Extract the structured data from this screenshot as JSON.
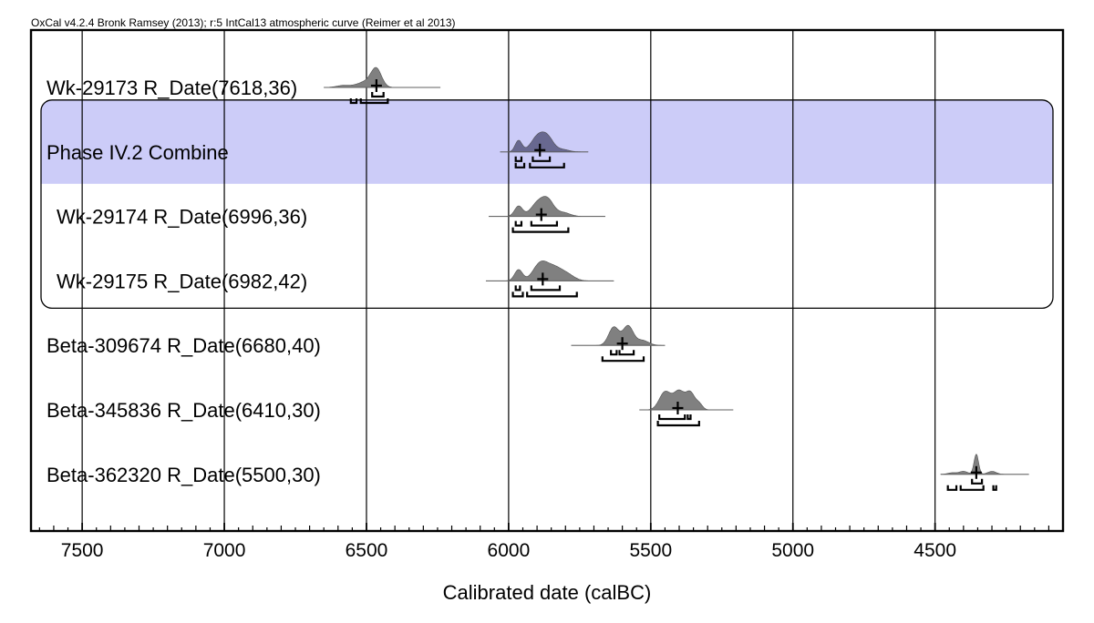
{
  "header": "OxCal v4.2.4 Bronk Ramsey (2013); r:5 IntCal13 atmospheric curve (Reimer et al 2013)",
  "chart_data": {
    "type": "ridgeline",
    "xlabel": "Calibrated date (calBC)",
    "xlim": [
      7680,
      4050
    ],
    "x_reversed": true,
    "xticks": [
      7500,
      7000,
      6500,
      6000,
      5500,
      5000,
      4500
    ],
    "grid": true,
    "groups": [
      {
        "label": "Phase IV.2 Combine",
        "rows": [
          1,
          3
        ],
        "highlight_row": 1,
        "highlight_color": "#ccccf8"
      }
    ],
    "rows": [
      {
        "label": "Wk-29173 R_Date(7618,36)",
        "indent": false,
        "median": 6465,
        "range": [
          6650,
          6240
        ],
        "peaks": [
          [
            6465,
            18,
            1.0
          ],
          [
            6500,
            30,
            0.35
          ],
          [
            6580,
            25,
            0.12
          ]
        ],
        "sigma1": [
          [
            6480,
            6440
          ]
        ],
        "sigma2": [
          [
            6555,
            6535
          ],
          [
            6520,
            6425
          ]
        ]
      },
      {
        "label": "Phase IV.2 Combine",
        "indent": false,
        "combined": true,
        "median": 5890,
        "range": [
          6030,
          5720
        ],
        "peaks": [
          [
            5965,
            12,
            0.7
          ],
          [
            5895,
            25,
            1.0
          ],
          [
            5860,
            20,
            0.65
          ],
          [
            5810,
            22,
            0.15
          ]
        ],
        "sigma1": [
          [
            5975,
            5955
          ],
          [
            5915,
            5855
          ]
        ],
        "sigma2": [
          [
            5975,
            5945
          ],
          [
            5925,
            5805
          ]
        ]
      },
      {
        "label": "Wk-29174 R_Date(6996,36)",
        "indent": true,
        "median": 5885,
        "range": [
          6070,
          5660
        ],
        "peaks": [
          [
            5965,
            14,
            0.65
          ],
          [
            5895,
            25,
            0.9
          ],
          [
            5860,
            20,
            0.8
          ],
          [
            5810,
            25,
            0.25
          ]
        ],
        "sigma1": [
          [
            5975,
            5955
          ],
          [
            5920,
            5830
          ]
        ],
        "sigma2": [
          [
            5985,
            5790
          ]
        ]
      },
      {
        "label": "Wk-29175 R_Date(6982,42)",
        "indent": true,
        "median": 5880,
        "range": [
          6080,
          5630
        ],
        "peaks": [
          [
            5965,
            14,
            0.6
          ],
          [
            5890,
            25,
            0.85
          ],
          [
            5840,
            30,
            0.7
          ],
          [
            5790,
            25,
            0.25
          ]
        ],
        "sigma1": [
          [
            5975,
            5960
          ],
          [
            5920,
            5820
          ]
        ],
        "sigma2": [
          [
            5985,
            5950
          ],
          [
            5935,
            5760
          ]
        ]
      },
      {
        "label": "Beta-309674 R_Date(6680,40)",
        "indent": false,
        "median": 5600,
        "range": [
          5780,
          5450
        ],
        "peaks": [
          [
            5630,
            18,
            0.9
          ],
          [
            5580,
            18,
            0.95
          ],
          [
            5530,
            22,
            0.25
          ]
        ],
        "sigma1": [
          [
            5640,
            5620
          ],
          [
            5610,
            5560
          ]
        ],
        "sigma2": [
          [
            5670,
            5525
          ]
        ]
      },
      {
        "label": "Beta-345836 R_Date(6410,30)",
        "indent": false,
        "median": 5405,
        "range": [
          5540,
          5210
        ],
        "peaks": [
          [
            5450,
            20,
            0.9
          ],
          [
            5400,
            20,
            0.95
          ],
          [
            5360,
            15,
            0.8
          ],
          [
            5330,
            12,
            0.3
          ]
        ],
        "sigma1": [
          [
            5470,
            5380
          ],
          [
            5370,
            5360
          ]
        ],
        "sigma2": [
          [
            5475,
            5330
          ]
        ]
      },
      {
        "label": "Beta-362320 R_Date(5500,30)",
        "indent": false,
        "median": 4355,
        "range": [
          4480,
          4170
        ],
        "peaks": [
          [
            4355,
            8,
            1.0
          ],
          [
            4400,
            15,
            0.15
          ],
          [
            4300,
            15,
            0.15
          ],
          [
            4440,
            15,
            0.08
          ]
        ],
        "sigma1": [
          [
            4370,
            4335
          ]
        ],
        "sigma2": [
          [
            4455,
            4425
          ],
          [
            4410,
            4330
          ],
          [
            4295,
            4285
          ]
        ]
      }
    ]
  }
}
